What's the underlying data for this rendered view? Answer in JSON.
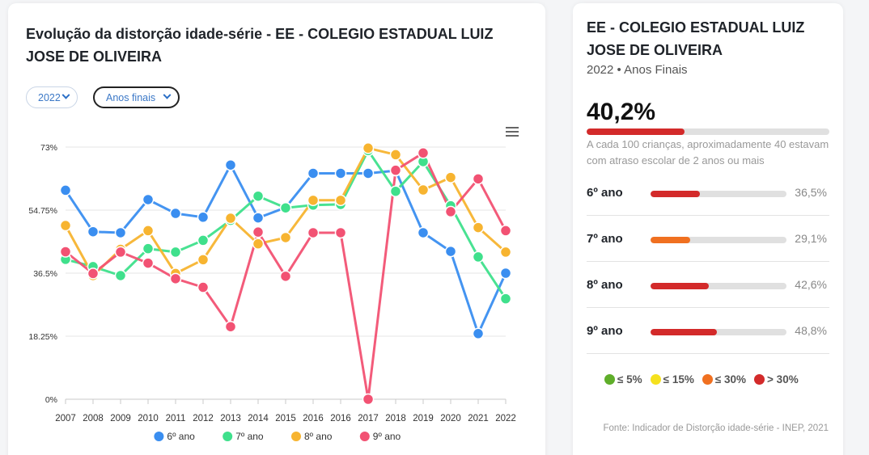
{
  "chart_panel": {
    "title": "Evolução da distorção idade-série - EE - COLEGIO ESTADUAL LUIZ JOSE DE OLIVEIRA",
    "year_select": "2022",
    "stage_select": "Anos finais"
  },
  "chart_data": {
    "type": "line",
    "title": "Evolução da distorção idade-série - EE - COLEGIO ESTADUAL LUIZ JOSE DE OLIVEIRA",
    "categories": [
      "2007",
      "2008",
      "2009",
      "2010",
      "2011",
      "2012",
      "2013",
      "2014",
      "2015",
      "2016",
      "2016",
      "2017",
      "2018",
      "2019",
      "2020",
      "2021",
      "2022"
    ],
    "y_ticks": [
      "0%",
      "18.25%",
      "36.5%",
      "54.75%",
      "73%"
    ],
    "ylim": [
      0,
      73
    ],
    "grid": true,
    "legend_position": "bottom",
    "series": [
      {
        "name": "6º ano",
        "color": "#3a8ef0",
        "values": [
          60.5,
          48.5,
          48.2,
          57.8,
          53.8,
          52.7,
          67.8,
          52.5,
          55.5,
          65.4,
          65.4,
          65.4,
          66.2,
          48.2,
          42.8,
          19.0,
          36.5
        ]
      },
      {
        "name": "7º ano",
        "color": "#3fe08c",
        "values": [
          40.5,
          38.4,
          35.8,
          43.6,
          42.6,
          46.0,
          51.8,
          58.8,
          55.4,
          56.2,
          56.4,
          72.0,
          60.2,
          68.8,
          56.0,
          41.2,
          29.1
        ]
      },
      {
        "name": "8º ano",
        "color": "#f7b430",
        "values": [
          50.3,
          35.8,
          43.4,
          48.8,
          36.4,
          40.4,
          52.4,
          45.0,
          46.8,
          57.6,
          57.6,
          72.7,
          70.8,
          60.6,
          64.2,
          49.7,
          42.6
        ]
      },
      {
        "name": "9º ano",
        "color": "#f25273",
        "values": [
          42.7,
          36.4,
          42.6,
          39.4,
          34.9,
          32.4,
          21.0,
          48.4,
          35.6,
          48.2,
          48.2,
          0,
          66.3,
          71.3,
          54.3,
          63.8,
          48.8
        ]
      }
    ]
  },
  "summary": {
    "school_name": "EE - COLEGIO ESTADUAL LUIZ JOSE DE OLIVEIRA",
    "year": "2022",
    "bullet": "•",
    "stage": "Anos Finais",
    "rate": "40,2%",
    "rate_value": 40.2,
    "rate_color": "#d32a2a",
    "description": "A cada 100 crianças, aproximadamente 40 estavam com atraso escolar de 2 anos ou mais",
    "grades": [
      {
        "name": "6º ano",
        "value_label": "36,5%",
        "value": 36.5,
        "color": "#d32a2a"
      },
      {
        "name": "7º ano",
        "value_label": "29,1%",
        "value": 29.1,
        "color": "#f07020"
      },
      {
        "name": "8º ano",
        "value_label": "42,6%",
        "value": 42.6,
        "color": "#d32a2a"
      },
      {
        "name": "9º ano",
        "value_label": "48,8%",
        "value": 48.8,
        "color": "#d32a2a"
      }
    ],
    "scale_legend": [
      {
        "label": "≤ 5%",
        "color": "#5fae2a"
      },
      {
        "label": "≤ 15%",
        "color": "#f5e11e"
      },
      {
        "label": "≤ 30%",
        "color": "#f07020"
      },
      {
        "label": "> 30%",
        "color": "#d32a2a"
      }
    ],
    "source": "Fonte: Indicador de Distorção idade-série - INEP, 2021"
  }
}
